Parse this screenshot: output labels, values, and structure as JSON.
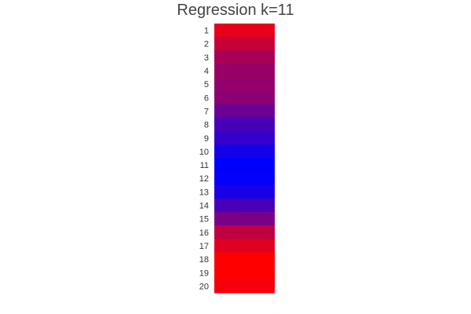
{
  "chart_data": {
    "type": "heatmap",
    "title": "Regression k=11",
    "xlabel": "",
    "ylabel": "",
    "grid": false,
    "legend": "none",
    "colorscale": [
      "#0000ff",
      "#ff0000"
    ],
    "rows": [
      "1",
      "2",
      "3",
      "4",
      "5",
      "6",
      "7",
      "8",
      "9",
      "10",
      "11",
      "12",
      "13",
      "14",
      "15",
      "16",
      "17",
      "18",
      "19",
      "20"
    ],
    "values": [
      0.9,
      0.78,
      0.66,
      0.6,
      0.58,
      0.55,
      0.42,
      0.28,
      0.2,
      0.08,
      0.0,
      0.02,
      0.1,
      0.28,
      0.48,
      0.75,
      0.88,
      1.0,
      1.0,
      0.96
    ]
  }
}
